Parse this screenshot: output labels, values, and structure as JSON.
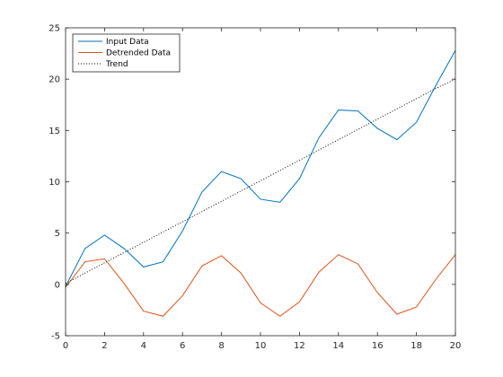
{
  "chart_data": {
    "type": "line",
    "title": "",
    "xlabel": "",
    "ylabel": "",
    "xlim": [
      0,
      20
    ],
    "ylim": [
      -5,
      25
    ],
    "xticks": [
      0,
      2,
      4,
      6,
      8,
      10,
      12,
      14,
      16,
      18,
      20
    ],
    "yticks": [
      -5,
      0,
      5,
      10,
      15,
      20,
      25
    ],
    "grid": false,
    "legend_position": "top-left",
    "x": [
      0,
      1,
      2,
      3,
      4,
      5,
      6,
      7,
      8,
      9,
      10,
      11,
      12,
      13,
      14,
      15,
      16,
      17,
      18,
      19,
      20
    ],
    "series": [
      {
        "name": "Input Data",
        "color": "#0072BD",
        "style": "solid",
        "values": [
          -0.2,
          3.5,
          4.8,
          3.5,
          1.7,
          2.2,
          5.2,
          9.0,
          11.0,
          10.3,
          8.3,
          8.0,
          10.3,
          14.3,
          17.0,
          16.9,
          15.2,
          14.1,
          15.8,
          19.4,
          22.8
        ]
      },
      {
        "name": "Detrended Data",
        "color": "#D95319",
        "style": "solid",
        "values": [
          -0.3,
          2.2,
          2.5,
          0.1,
          -2.6,
          -3.1,
          -1.1,
          1.8,
          2.8,
          1.1,
          -1.8,
          -3.1,
          -1.7,
          1.2,
          2.9,
          2.0,
          -0.8,
          -2.9,
          -2.2,
          0.5,
          2.9
        ]
      },
      {
        "name": "Trend",
        "color": "#000000",
        "style": "dotted",
        "values": [
          0.1,
          1.1,
          2.1,
          3.1,
          4.1,
          5.1,
          6.1,
          7.1,
          8.1,
          9.1,
          10.1,
          11.1,
          12.1,
          13.1,
          14.1,
          15.1,
          16.1,
          17.1,
          18.1,
          19.1,
          20.0
        ]
      }
    ]
  }
}
